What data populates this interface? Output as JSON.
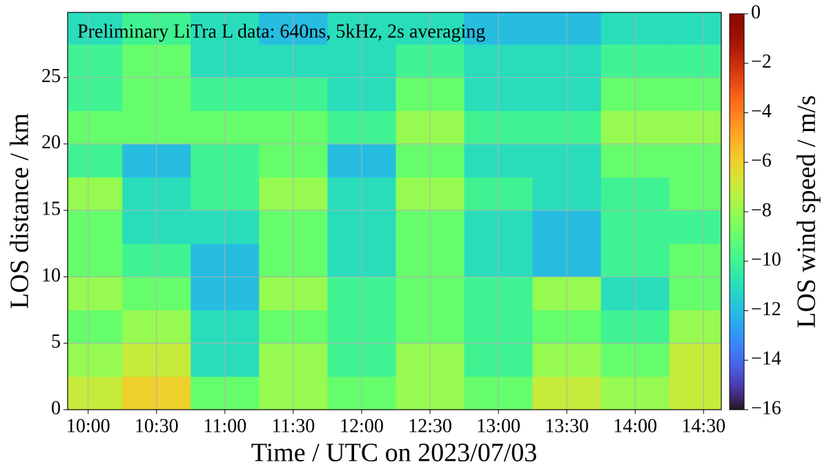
{
  "chart_data": {
    "type": "heatmap",
    "annotation": "Preliminary LiTra L data: 640ns, 5kHz, 2s averaging",
    "x_label": "Time / UTC on 2023/07/03",
    "y_label": "LOS distance / km",
    "colorbar_label": "LOS wind speed / m/s",
    "colormap": "turbo",
    "grid": true,
    "xlim": [
      9.85,
      14.63
    ],
    "xticks": [
      {
        "value": 10,
        "label": "10:00"
      },
      {
        "value": 10.5,
        "label": "10:30"
      },
      {
        "value": 11,
        "label": "11:00"
      },
      {
        "value": 11.5,
        "label": "11:30"
      },
      {
        "value": 12,
        "label": "12:00"
      },
      {
        "value": 12.5,
        "label": "12:30"
      },
      {
        "value": 13,
        "label": "13:00"
      },
      {
        "value": 13.5,
        "label": "13:30"
      },
      {
        "value": 14,
        "label": "14:00"
      },
      {
        "value": 14.5,
        "label": "14:30"
      }
    ],
    "ylim": [
      0,
      29.9
    ],
    "yticks": [
      0,
      5,
      10,
      15,
      20,
      25
    ],
    "clim": [
      -16,
      0
    ],
    "cticks": [
      0,
      {
        "value": -2,
        "label": "−2"
      },
      {
        "value": -4,
        "label": "−4"
      },
      {
        "value": -6,
        "label": "−6"
      },
      {
        "value": -8,
        "label": "−8"
      },
      {
        "value": -10,
        "label": "−10"
      },
      {
        "value": -12,
        "label": "−12"
      },
      {
        "value": -14,
        "label": "−14"
      },
      {
        "value": -16,
        "label": "−16"
      }
    ],
    "x_bins": [
      9.85,
      10.25,
      10.75,
      11.25,
      11.75,
      12.25,
      12.75,
      13.25,
      13.75,
      14.25,
      14.63
    ],
    "y_bins": [
      0,
      2.5,
      5,
      7.5,
      10,
      12.5,
      15,
      17.5,
      20,
      22.5,
      25,
      27.5,
      29.9
    ],
    "z": [
      [
        -7,
        -6,
        -9,
        -8,
        -9,
        -8,
        -9,
        -7,
        -8,
        -7
      ],
      [
        -8,
        -7,
        -11,
        -8,
        -10,
        -8,
        -10,
        -8,
        -9,
        -7
      ],
      [
        -9,
        -8,
        -11,
        -9,
        -10,
        -9,
        -10,
        -9,
        -10,
        -8
      ],
      [
        -8,
        -9,
        -12,
        -8,
        -10,
        -9,
        -10,
        -8,
        -11,
        -9
      ],
      [
        -9,
        -10,
        -12,
        -9,
        -11,
        -9,
        -11,
        -12,
        -10,
        -9
      ],
      [
        -9,
        -11,
        -11,
        -9,
        -11,
        -9,
        -11,
        -12,
        -10,
        -10
      ],
      [
        -8,
        -11,
        -10,
        -8,
        -11,
        -8,
        -10,
        -11,
        -10,
        -9
      ],
      [
        -10,
        -12,
        -10,
        -9,
        -12,
        -9,
        -11,
        -11,
        -9,
        -9
      ],
      [
        -9,
        -9,
        -9,
        -9,
        -10,
        -8,
        -10,
        -10,
        -8,
        -8
      ],
      [
        -10,
        -9,
        -10,
        -10,
        -11,
        -9,
        -11,
        -11,
        -9,
        -9
      ],
      [
        -10,
        -9,
        -11,
        -11,
        -11,
        -10,
        -11,
        -11,
        -10,
        -10
      ],
      [
        -11,
        -10,
        -11,
        -12,
        -11,
        -11,
        -12,
        -12,
        -11,
        -11
      ]
    ]
  }
}
